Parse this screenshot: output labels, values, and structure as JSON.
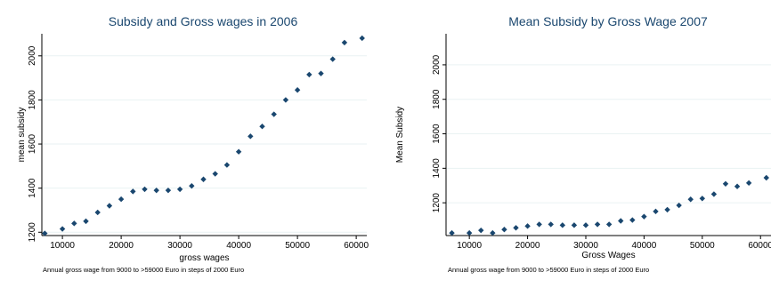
{
  "chart_data": [
    {
      "type": "scatter",
      "title": "Subsidy and Gross wages in 2006",
      "xlabel": "gross wages",
      "ylabel": "mean subsidy",
      "note": "Annual gross wage from 9000 to >59000 Euro in steps of 2000 Euro",
      "xlim": [
        6500,
        61800
      ],
      "ylim": [
        1185,
        2100
      ],
      "xticks": [
        10000,
        20000,
        30000,
        40000,
        50000,
        60000
      ],
      "yticks": [
        1200,
        1400,
        1600,
        1800,
        2000
      ],
      "grid": true,
      "marker_color": "#1a476f",
      "x": [
        7000,
        10000,
        12000,
        14000,
        16000,
        18000,
        20000,
        22000,
        24000,
        26000,
        28000,
        30000,
        32000,
        34000,
        36000,
        38000,
        40000,
        42000,
        44000,
        46000,
        48000,
        50000,
        52000,
        54000,
        56000,
        58000,
        61000
      ],
      "y": [
        1195,
        1215,
        1240,
        1250,
        1290,
        1320,
        1350,
        1385,
        1395,
        1390,
        1390,
        1395,
        1410,
        1440,
        1465,
        1505,
        1565,
        1635,
        1680,
        1735,
        1800,
        1845,
        1915,
        1920,
        1985,
        2060,
        2080
      ]
    },
    {
      "type": "scatter",
      "title": "Mean Subsidy by Gross Wage 2007",
      "xlabel": "Gross Wages",
      "ylabel": "Mean Subsidy",
      "note": "Annual gross wage from 9000 to >59000 Euro in steps of 2000 Euro",
      "xlim": [
        6000,
        61800
      ],
      "ylim": [
        1010,
        2180
      ],
      "xticks": [
        10000,
        20000,
        30000,
        40000,
        50000,
        60000
      ],
      "yticks": [
        1200,
        1400,
        1600,
        1800,
        2000
      ],
      "grid": true,
      "marker_color": "#1a476f",
      "x": [
        7000,
        10000,
        12000,
        14000,
        16000,
        18000,
        20000,
        22000,
        24000,
        26000,
        28000,
        30000,
        32000,
        34000,
        36000,
        38000,
        40000,
        42000,
        44000,
        46000,
        48000,
        50000,
        52000,
        54000,
        56000,
        58000,
        61000
      ],
      "y": [
        1025,
        1025,
        1040,
        1025,
        1045,
        1055,
        1065,
        1075,
        1075,
        1070,
        1070,
        1070,
        1075,
        1075,
        1095,
        1100,
        1120,
        1150,
        1160,
        1185,
        1220,
        1225,
        1250,
        1310,
        1295,
        1315,
        1345
      ]
    }
  ]
}
